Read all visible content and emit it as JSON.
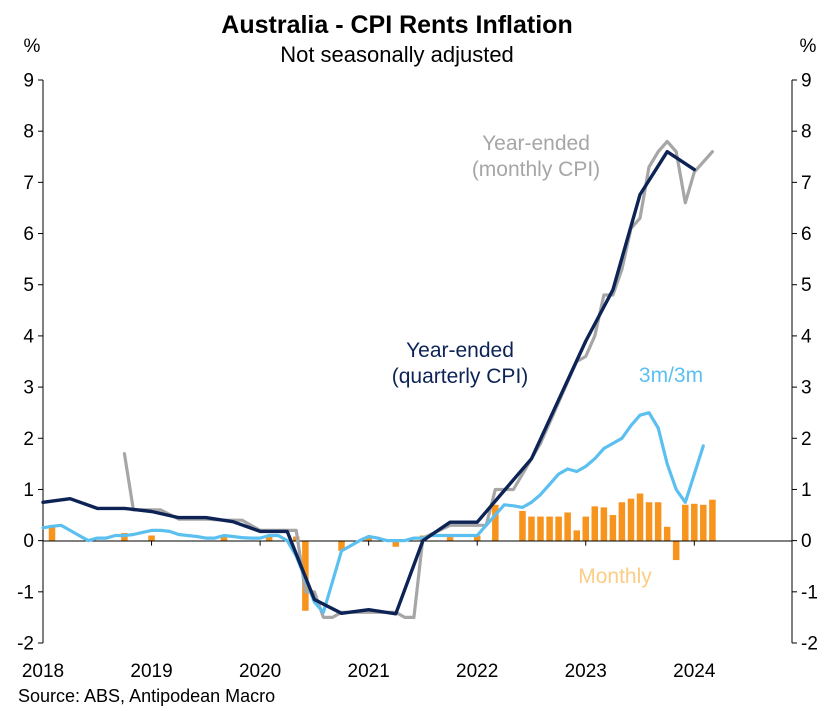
{
  "chart_data": {
    "type": "line",
    "title": "Australia - CPI Rents Inflation",
    "subtitle": "Not seasonally adjusted",
    "source": "Source: ABS, Antipodean Macro",
    "ylabel_left": "%",
    "ylabel_right": "%",
    "ylim": [
      -2,
      9
    ],
    "xlim": [
      2018,
      2024.9
    ],
    "yticks": [
      "-2",
      "-1",
      "0",
      "1",
      "2",
      "3",
      "4",
      "5",
      "6",
      "7",
      "8",
      "9"
    ],
    "xticks": [
      "2018",
      "2019",
      "2020",
      "2021",
      "2022",
      "2023",
      "2024"
    ],
    "grid": false,
    "colors": {
      "quarterly": "#0d2356",
      "monthly_ye": "#a6a6a6",
      "three_m": "#5bc0f0",
      "monthly_bar": "#f7941d",
      "monthly_label": "#fbcd85"
    },
    "annotations": {
      "monthly_ye": [
        "Year-ended",
        "(monthly CPI)"
      ],
      "quarterly": [
        "Year-ended",
        "(quarterly CPI)"
      ],
      "three_m": "3m/3m",
      "monthly": "Monthly"
    },
    "series": [
      {
        "key": "quarterly",
        "kind": "line",
        "x": [
          2018.0,
          2018.25,
          2018.5,
          2018.75,
          2019.0,
          2019.25,
          2019.5,
          2019.75,
          2020.0,
          2020.25,
          2020.5,
          2020.75,
          2021.0,
          2021.25,
          2021.5,
          2021.75,
          2022.0,
          2022.25,
          2022.5,
          2022.75,
          2023.0,
          2023.25,
          2023.5,
          2023.75,
          2024.0
        ],
        "y": [
          0.75,
          0.82,
          0.63,
          0.63,
          0.57,
          0.45,
          0.45,
          0.37,
          0.18,
          0.18,
          -1.15,
          -1.42,
          -1.35,
          -1.43,
          0.0,
          0.36,
          0.36,
          0.98,
          1.6,
          2.75,
          3.9,
          4.9,
          6.76,
          7.6,
          7.25
        ]
      },
      {
        "key": "monthly_ye",
        "kind": "line",
        "x": [
          2018.75,
          2018.833,
          2019.0,
          2019.083,
          2019.25,
          2019.5,
          2019.667,
          2019.75,
          2019.833,
          2020.0,
          2020.083,
          2020.25,
          2020.333,
          2020.417,
          2020.5,
          2020.583,
          2020.667,
          2020.75,
          2020.833,
          2021.0,
          2021.083,
          2021.25,
          2021.333,
          2021.417,
          2021.5,
          2021.75,
          2022.0,
          2022.083,
          2022.167,
          2022.25,
          2022.333,
          2022.5,
          2022.583,
          2022.667,
          2022.75,
          2022.833,
          2022.917,
          2023.0,
          2023.083,
          2023.167,
          2023.25,
          2023.333,
          2023.417,
          2023.5,
          2023.583,
          2023.667,
          2023.75,
          2023.833,
          2023.917,
          2024.0,
          2024.083,
          2024.167
        ],
        "y": [
          1.7,
          0.6,
          0.6,
          0.6,
          0.42,
          0.42,
          0.4,
          0.4,
          0.4,
          0.2,
          0.2,
          0.2,
          0.2,
          -1.0,
          -1.0,
          -1.5,
          -1.5,
          -1.4,
          -1.4,
          -1.4,
          -1.4,
          -1.4,
          -1.5,
          -1.5,
          0.05,
          0.3,
          0.3,
          0.3,
          1.0,
          1.0,
          1.0,
          1.6,
          1.9,
          2.3,
          2.7,
          3.1,
          3.5,
          3.6,
          4.0,
          4.8,
          4.8,
          5.3,
          6.1,
          6.3,
          7.3,
          7.6,
          7.8,
          7.6,
          6.6,
          7.2,
          7.4,
          7.6
        ]
      },
      {
        "key": "three_m",
        "kind": "line",
        "x": [
          2018.0,
          2018.083,
          2018.167,
          2018.25,
          2018.333,
          2018.417,
          2018.5,
          2018.583,
          2018.667,
          2018.75,
          2018.833,
          2018.917,
          2019.0,
          2019.083,
          2019.167,
          2019.25,
          2019.333,
          2019.417,
          2019.5,
          2019.583,
          2019.667,
          2019.75,
          2019.833,
          2019.917,
          2020.0,
          2020.083,
          2020.167,
          2020.25,
          2020.333,
          2020.417,
          2020.5,
          2020.583,
          2020.667,
          2020.75,
          2020.833,
          2020.917,
          2021.0,
          2021.083,
          2021.167,
          2021.25,
          2021.333,
          2021.417,
          2021.5,
          2021.583,
          2021.667,
          2021.75,
          2021.833,
          2021.917,
          2022.0,
          2022.083,
          2022.167,
          2022.25,
          2022.333,
          2022.417,
          2022.5,
          2022.583,
          2022.667,
          2022.75,
          2022.833,
          2022.917,
          2023.0,
          2023.083,
          2023.167,
          2023.25,
          2023.333,
          2023.417,
          2023.5,
          2023.583,
          2023.667,
          2023.75,
          2023.833,
          2023.917,
          2024.0,
          2024.083
        ],
        "y": [
          0.25,
          0.28,
          0.3,
          0.2,
          0.1,
          0.0,
          0.05,
          0.05,
          0.1,
          0.1,
          0.12,
          0.16,
          0.2,
          0.2,
          0.18,
          0.12,
          0.1,
          0.08,
          0.05,
          0.05,
          0.1,
          0.08,
          0.06,
          0.05,
          0.05,
          0.1,
          0.1,
          0.0,
          -0.3,
          -0.75,
          -1.2,
          -1.4,
          -0.8,
          -0.2,
          -0.1,
          0.0,
          0.08,
          0.05,
          0.0,
          0.0,
          0.0,
          0.05,
          0.05,
          0.1,
          0.1,
          0.1,
          0.1,
          0.1,
          0.1,
          0.3,
          0.5,
          0.7,
          0.68,
          0.65,
          0.75,
          0.9,
          1.1,
          1.3,
          1.4,
          1.35,
          1.45,
          1.6,
          1.8,
          1.9,
          2.0,
          2.25,
          2.45,
          2.5,
          2.2,
          1.5,
          1.0,
          0.75,
          1.3,
          1.85
        ]
      },
      {
        "key": "monthly_bar",
        "kind": "bar",
        "x": [
          2018.083,
          2018.75,
          2019.0,
          2019.667,
          2020.083,
          2020.333,
          2020.417,
          2020.75,
          2021.0,
          2021.25,
          2021.5,
          2021.75,
          2022.0,
          2022.167,
          2022.417,
          2022.5,
          2022.583,
          2022.667,
          2022.75,
          2022.833,
          2022.917,
          2023.0,
          2023.083,
          2023.167,
          2023.25,
          2023.333,
          2023.417,
          2023.5,
          2023.583,
          2023.667,
          2023.75,
          2023.833,
          2023.917,
          2024.0,
          2024.083,
          2024.167
        ],
        "y": [
          0.27,
          0.15,
          0.1,
          0.08,
          0.08,
          0.08,
          -1.37,
          -0.2,
          0.08,
          -0.12,
          0.1,
          0.1,
          0.1,
          0.7,
          0.58,
          0.47,
          0.47,
          0.47,
          0.47,
          0.55,
          0.2,
          0.47,
          0.67,
          0.65,
          0.5,
          0.75,
          0.82,
          0.92,
          0.75,
          0.75,
          0.27,
          -0.38,
          0.7,
          0.72,
          0.7,
          0.8
        ]
      }
    ]
  }
}
